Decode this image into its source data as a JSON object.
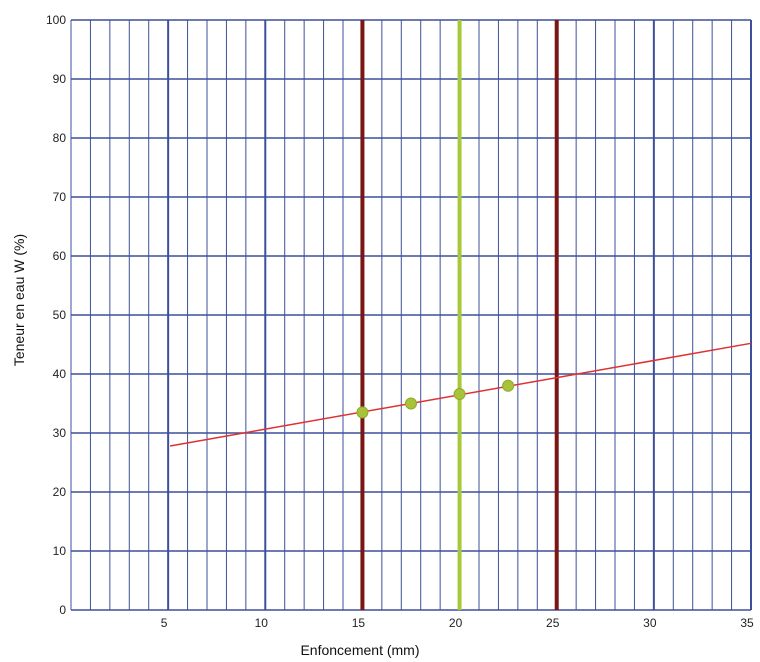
{
  "chart_data": {
    "type": "line",
    "title": "",
    "xlabel": "Enfoncement (mm)",
    "ylabel": "Teneur en eau W (%)",
    "xlim": [
      0,
      35
    ],
    "ylim": [
      0,
      100
    ],
    "x_ticks": [
      5,
      10,
      15,
      20,
      25,
      30,
      35
    ],
    "y_ticks": [
      0,
      10,
      20,
      30,
      40,
      50,
      60,
      70,
      80,
      90,
      100
    ],
    "grid": true,
    "legend": "none",
    "series": [
      {
        "kind": "line",
        "color": "#e03030",
        "x": [
          5.1,
          35
        ],
        "y": [
          27.8,
          45.2
        ]
      },
      {
        "kind": "scatter",
        "color": "#a8c23a",
        "x": [
          15,
          17.5,
          20,
          22.5
        ],
        "y": [
          33.5,
          35.0,
          36.6,
          38.0
        ]
      }
    ],
    "reference_lines": [
      {
        "x": 15,
        "color": "#7a1616"
      },
      {
        "x": 20,
        "color": "#a6c83a"
      },
      {
        "x": 25,
        "color": "#7a1616"
      }
    ],
    "colors": {
      "grid_major": "#3d4f9b",
      "grid_minor": "#3d4f9b"
    }
  }
}
